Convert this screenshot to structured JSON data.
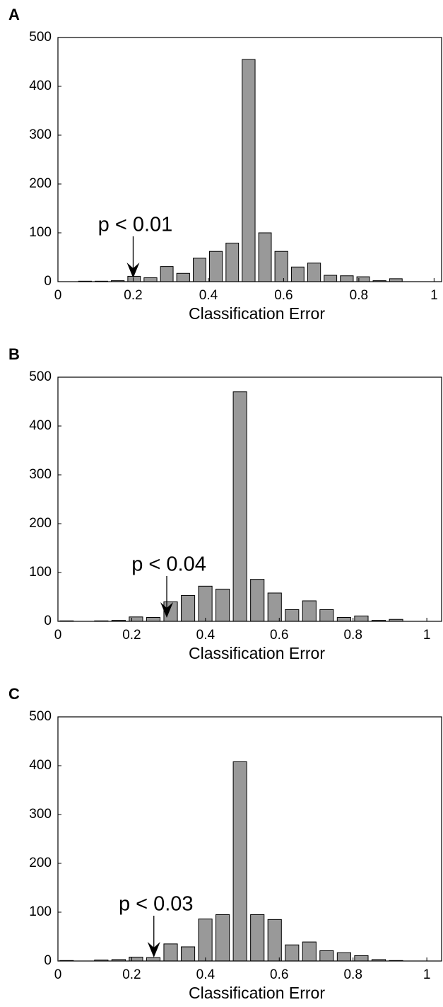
{
  "chart_data": [
    {
      "type": "histogram",
      "panel_label": "A",
      "xlabel": "Classification Error",
      "bins": [
        0.05,
        0.094,
        0.137,
        0.181,
        0.224,
        0.268,
        0.311,
        0.355,
        0.398,
        0.442,
        0.485,
        0.529,
        0.572,
        0.616,
        0.659,
        0.703,
        0.746,
        0.79,
        0.833,
        0.877,
        0.92
      ],
      "values": [
        1,
        1,
        2,
        11,
        8,
        31,
        17,
        48,
        62,
        79,
        455,
        100,
        62,
        30,
        38,
        13,
        12,
        10,
        2,
        6
      ],
      "color": "#999999",
      "xlim": [
        0,
        1.02
      ],
      "ylim": [
        0,
        500
      ],
      "xticks": [
        0,
        0.2,
        0.4,
        0.6,
        0.8,
        1
      ],
      "yticks": [
        0,
        100,
        200,
        300,
        400,
        500
      ],
      "annotation": {
        "text": "p < 0.01",
        "x": 0.2
      }
    },
    {
      "type": "histogram",
      "panel_label": "B",
      "xlabel": "Classification Error",
      "bins": [
        0,
        0.047,
        0.094,
        0.141,
        0.188,
        0.235,
        0.282,
        0.329,
        0.376,
        0.423,
        0.47,
        0.517,
        0.564,
        0.611,
        0.658,
        0.705,
        0.752,
        0.799,
        0.846,
        0.893,
        0.94
      ],
      "values": [
        1,
        0,
        1,
        2,
        9,
        8,
        40,
        53,
        72,
        66,
        470,
        86,
        58,
        24,
        42,
        24,
        8,
        11,
        2,
        4
      ],
      "color": "#999999",
      "xlim": [
        0,
        1.04
      ],
      "ylim": [
        0,
        500
      ],
      "xticks": [
        0,
        0.2,
        0.4,
        0.6,
        0.8,
        1
      ],
      "yticks": [
        0,
        100,
        200,
        300,
        400,
        500
      ],
      "annotation": {
        "text": "p < 0.04",
        "x": 0.295
      }
    },
    {
      "type": "histogram",
      "panel_label": "C",
      "xlabel": "Classification Error",
      "bins": [
        0,
        0.047,
        0.094,
        0.141,
        0.188,
        0.235,
        0.282,
        0.329,
        0.376,
        0.423,
        0.47,
        0.517,
        0.564,
        0.611,
        0.658,
        0.705,
        0.752,
        0.799,
        0.846,
        0.893,
        0.94
      ],
      "values": [
        1,
        0,
        2,
        3,
        8,
        7,
        35,
        29,
        86,
        95,
        408,
        95,
        85,
        33,
        39,
        21,
        17,
        11,
        3,
        1
      ],
      "color": "#999999",
      "xlim": [
        0,
        1.04
      ],
      "ylim": [
        0,
        500
      ],
      "xticks": [
        0,
        0.2,
        0.4,
        0.6,
        0.8,
        1
      ],
      "yticks": [
        0,
        100,
        200,
        300,
        400,
        500
      ],
      "annotation": {
        "text": "p < 0.03",
        "x": 0.26
      }
    }
  ]
}
